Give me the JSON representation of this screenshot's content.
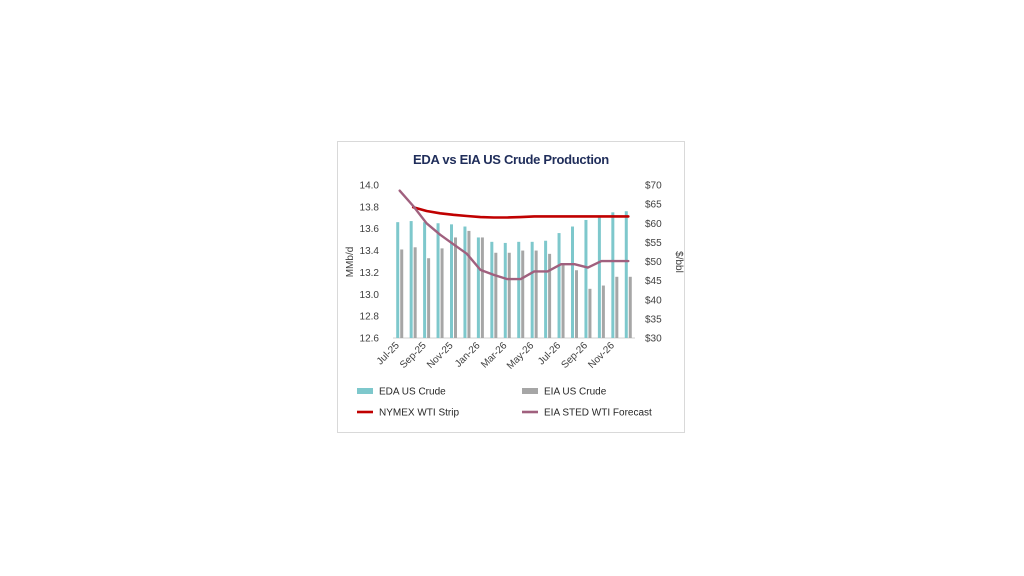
{
  "chart_data": {
    "type": "bar",
    "title": "EDA vs EIA US Crude Production",
    "ylabel": "MMb/d",
    "y2label": "$/bbl",
    "ylim": [
      12.6,
      14.0
    ],
    "y_ticks": [
      "14.0",
      "13.8",
      "13.6",
      "13.4",
      "13.2",
      "13.0",
      "12.8",
      "12.6"
    ],
    "y2lim": [
      30,
      70
    ],
    "y2_ticks": [
      "$70",
      "$65",
      "$60",
      "$55",
      "$50",
      "$45",
      "$40",
      "$35",
      "$30"
    ],
    "categories": [
      "Jul-25",
      "Aug-25",
      "Sep-25",
      "Oct-25",
      "Nov-25",
      "Dec-25",
      "Jan-26",
      "Feb-26",
      "Mar-26",
      "Apr-26",
      "May-26",
      "Jun-26",
      "Jul-26",
      "Aug-26",
      "Sep-26",
      "Oct-26",
      "Nov-26",
      "Dec-26"
    ],
    "x_tick_labels": [
      "Jul-25",
      "Sep-25",
      "Nov-25",
      "Jan-26",
      "Mar-26",
      "May-26",
      "Jul-26",
      "Sep-26",
      "Nov-26"
    ],
    "series": [
      {
        "name": "EDA US Crude",
        "kind": "bar",
        "axis": "left",
        "color": "#7ec8cc",
        "values": [
          13.66,
          13.67,
          13.66,
          13.65,
          13.64,
          13.62,
          13.52,
          13.48,
          13.47,
          13.48,
          13.48,
          13.49,
          13.56,
          13.62,
          13.68,
          13.72,
          13.75,
          13.76
        ]
      },
      {
        "name": "EIA US Crude",
        "kind": "bar",
        "axis": "left",
        "color": "#a6a6a6",
        "values": [
          13.41,
          13.43,
          13.33,
          13.42,
          13.52,
          13.58,
          13.52,
          13.38,
          13.38,
          13.4,
          13.4,
          13.37,
          13.28,
          13.22,
          13.05,
          13.08,
          13.16,
          13.16
        ]
      },
      {
        "name": "NYMEX WTI Strip",
        "kind": "line",
        "axis": "right",
        "color": "#c00000",
        "values": [
          null,
          64.2,
          63.2,
          62.6,
          62.2,
          61.9,
          61.6,
          61.5,
          61.5,
          61.6,
          61.8,
          61.8,
          61.8,
          61.8,
          61.8,
          61.8,
          61.8,
          61.8
        ]
      },
      {
        "name": "EIA STED WTI Forecast",
        "kind": "line",
        "axis": "right",
        "color": "#a0607e",
        "values": [
          68.5,
          64.5,
          60.0,
          57.0,
          54.5,
          52.0,
          47.8,
          46.5,
          45.4,
          45.4,
          47.4,
          47.4,
          49.3,
          49.3,
          48.4,
          50.1,
          50.1,
          50.1
        ]
      }
    ],
    "grid": false,
    "legend_position": "bottom"
  }
}
